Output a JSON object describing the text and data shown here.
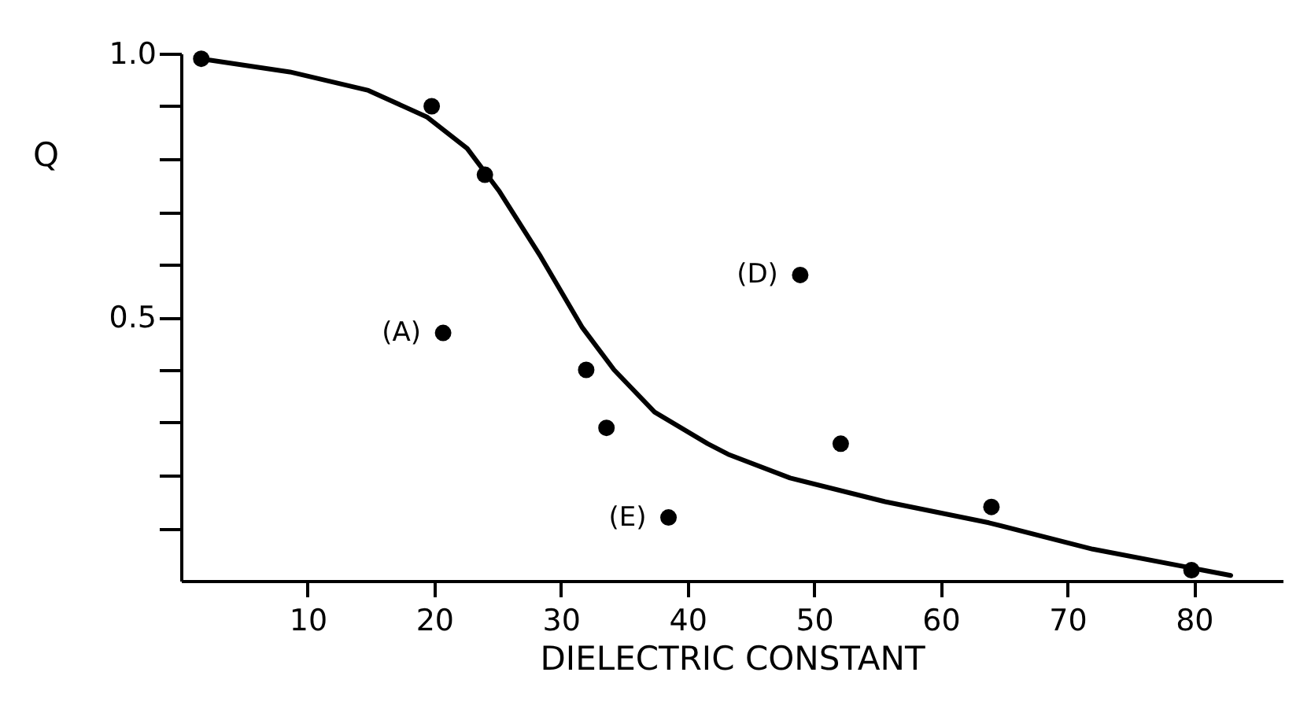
{
  "chart_data": {
    "type": "scatter",
    "xlabel": "DIELECTRIC CONSTANT",
    "ylabel": "Q",
    "xlim": [
      0,
      87
    ],
    "xticks": [
      10,
      20,
      30,
      40,
      50,
      60,
      70,
      80
    ],
    "ylim": [
      0,
      1.0
    ],
    "yticks": [
      {
        "value": 0.1,
        "label": null
      },
      {
        "value": 0.2,
        "label": null
      },
      {
        "value": 0.3,
        "label": null
      },
      {
        "value": 0.4,
        "label": null
      },
      {
        "value": 0.5,
        "label": "0.5"
      },
      {
        "value": 0.6,
        "label": null
      },
      {
        "value": 0.7,
        "label": null
      },
      {
        "value": 0.8,
        "label": null
      },
      {
        "value": 0.9,
        "label": null
      },
      {
        "value": 1.0,
        "label": "1.0"
      }
    ],
    "grid": false,
    "marker": "circle",
    "series": [
      {
        "color": "#000000",
        "x": [
          1.6,
          19.8,
          24.0,
          20.7,
          32.0,
          33.6,
          38.5,
          48.9,
          52.1,
          64.0,
          79.8
        ],
        "values": [
          0.99,
          0.9,
          0.77,
          0.47,
          0.4,
          0.29,
          0.12,
          0.58,
          0.26,
          0.14,
          0.02
        ]
      },
      {
        "type": "line",
        "color": "#000000",
        "marker": "none",
        "line_style": "solid",
        "x": [
          1.6,
          8.6,
          14.8,
          19.4,
          22.6,
          25.1,
          28.4,
          31.7,
          34.2,
          37.4,
          41.6,
          43.2,
          48.1,
          55.6,
          63.8,
          72.0,
          82.9
        ],
        "values": [
          0.99,
          0.965,
          0.93,
          0.88,
          0.82,
          0.74,
          0.615,
          0.48,
          0.4,
          0.32,
          0.26,
          0.24,
          0.195,
          0.15,
          0.11,
          0.06,
          0.01
        ]
      }
    ],
    "annotations": [
      {
        "text": "(A)",
        "x": 20.7,
        "y": 0.47
      },
      {
        "text": "(D)",
        "x": 48.9,
        "y": 0.58
      },
      {
        "text": "(E)",
        "x": 38.5,
        "y": 0.12
      }
    ]
  }
}
